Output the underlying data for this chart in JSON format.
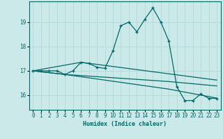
{
  "xlabel": "Humidex (Indice chaleur)",
  "bg_color": "#cce9e9",
  "grid_color": "#b0d8d8",
  "line_color": "#006868",
  "xlim": [
    -0.5,
    23.5
  ],
  "ylim": [
    15.4,
    19.85
  ],
  "yticks": [
    16,
    17,
    18,
    19
  ],
  "xticks": [
    0,
    1,
    2,
    3,
    4,
    5,
    6,
    7,
    8,
    9,
    10,
    11,
    12,
    13,
    14,
    15,
    16,
    17,
    18,
    19,
    20,
    21,
    22,
    23
  ],
  "line1_x": [
    0,
    1,
    2,
    3,
    4,
    5,
    6,
    7,
    8,
    9,
    10,
    11,
    12,
    13,
    14,
    15,
    16,
    17,
    18,
    19,
    20,
    21,
    22,
    23
  ],
  "line1_y": [
    17.0,
    17.0,
    17.0,
    17.0,
    16.85,
    17.0,
    17.35,
    17.3,
    17.15,
    17.1,
    17.82,
    18.85,
    19.0,
    18.6,
    19.12,
    19.58,
    19.0,
    18.22,
    16.35,
    15.78,
    15.78,
    16.05,
    15.87,
    15.87
  ],
  "line2_x": [
    0,
    4,
    17,
    23
  ],
  "line2_y": [
    17.0,
    16.85,
    16.56,
    16.38
  ],
  "line3_x": [
    0,
    4,
    17,
    23
  ],
  "line3_y": [
    17.0,
    16.85,
    16.25,
    15.88
  ],
  "line4_x": [
    0,
    6,
    23
  ],
  "line4_y": [
    17.0,
    17.35,
    16.62
  ]
}
